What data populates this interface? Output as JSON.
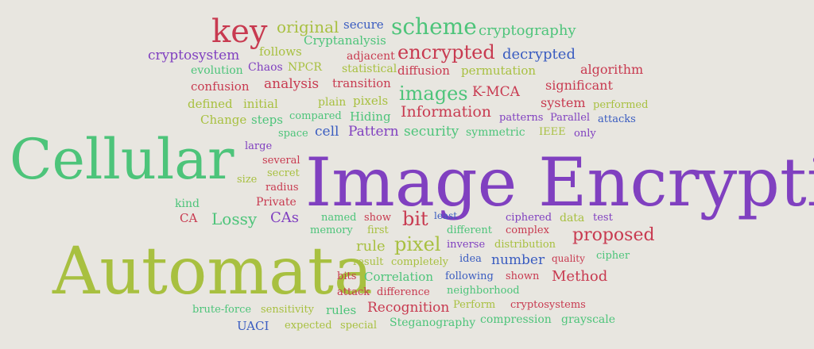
{
  "palette": {
    "background": "#e8e6e0",
    "green": "#4dc47a",
    "olive": "#a8c040",
    "purple": "#8040c0",
    "red": "#c83a50",
    "blue": "#3a5cc0"
  },
  "words": [
    {
      "text": "Image Encryption",
      "color": "purple"
    },
    {
      "text": "Cellular",
      "color": "green"
    },
    {
      "text": "Automata",
      "color": "olive"
    },
    {
      "text": "key",
      "color": "red"
    },
    {
      "text": "scheme",
      "color": "green"
    },
    {
      "text": "encrypted",
      "color": "red"
    },
    {
      "text": "images",
      "color": "green"
    },
    {
      "text": "pixel",
      "color": "olive"
    },
    {
      "text": "Information",
      "color": "red"
    },
    {
      "text": "proposed",
      "color": "red"
    },
    {
      "text": "bit",
      "color": "red"
    },
    {
      "text": "original",
      "color": "olive"
    },
    {
      "text": "cryptography",
      "color": "green"
    },
    {
      "text": "decrypted",
      "color": "blue"
    },
    {
      "text": "cryptosystem",
      "color": "purple"
    },
    {
      "text": "analysis",
      "color": "red"
    },
    {
      "text": "K-MCA",
      "color": "red"
    },
    {
      "text": "Method",
      "color": "red"
    },
    {
      "text": "Lossy",
      "color": "green"
    },
    {
      "text": "CAs",
      "color": "purple"
    },
    {
      "text": "rule",
      "color": "olive"
    },
    {
      "text": "number",
      "color": "blue"
    },
    {
      "text": "Recognition",
      "color": "red"
    },
    {
      "text": "security",
      "color": "green"
    },
    {
      "text": "system",
      "color": "red"
    },
    {
      "text": "cell",
      "color": "blue"
    },
    {
      "text": "Pattern",
      "color": "purple"
    },
    {
      "text": "algorithm",
      "color": "red"
    },
    {
      "text": "significant",
      "color": "red"
    },
    {
      "text": "confusion",
      "color": "red"
    },
    {
      "text": "diffusion",
      "color": "red"
    },
    {
      "text": "permutation",
      "color": "olive"
    },
    {
      "text": "transition",
      "color": "red"
    },
    {
      "text": "secure",
      "color": "blue"
    },
    {
      "text": "Cryptanalysis",
      "color": "green"
    },
    {
      "text": "follows",
      "color": "olive"
    },
    {
      "text": "adjacent",
      "color": "red"
    },
    {
      "text": "Chaos",
      "color": "purple"
    },
    {
      "text": "NPCR",
      "color": "olive"
    },
    {
      "text": "statistical",
      "color": "olive"
    },
    {
      "text": "evolution",
      "color": "green"
    },
    {
      "text": "defined",
      "color": "olive"
    },
    {
      "text": "initial",
      "color": "olive"
    },
    {
      "text": "plain",
      "color": "olive"
    },
    {
      "text": "pixels",
      "color": "olive"
    },
    {
      "text": "performed",
      "color": "olive"
    },
    {
      "text": "Change",
      "color": "olive"
    },
    {
      "text": "steps",
      "color": "green"
    },
    {
      "text": "compared",
      "color": "green"
    },
    {
      "text": "Hiding",
      "color": "green"
    },
    {
      "text": "patterns",
      "color": "purple"
    },
    {
      "text": "Parallel",
      "color": "purple"
    },
    {
      "text": "attacks",
      "color": "blue"
    },
    {
      "text": "space",
      "color": "green"
    },
    {
      "text": "symmetric",
      "color": "green"
    },
    {
      "text": "IEEE",
      "color": "olive"
    },
    {
      "text": "only",
      "color": "purple"
    },
    {
      "text": "large",
      "color": "purple"
    },
    {
      "text": "several",
      "color": "red"
    },
    {
      "text": "secret",
      "color": "olive"
    },
    {
      "text": "size",
      "color": "olive"
    },
    {
      "text": "radius",
      "color": "red"
    },
    {
      "text": "Private",
      "color": "red"
    },
    {
      "text": "kind",
      "color": "green"
    },
    {
      "text": "CA",
      "color": "red"
    },
    {
      "text": "named",
      "color": "green"
    },
    {
      "text": "show",
      "color": "red"
    },
    {
      "text": "least",
      "color": "blue"
    },
    {
      "text": "ciphered",
      "color": "purple"
    },
    {
      "text": "data",
      "color": "olive"
    },
    {
      "text": "test",
      "color": "purple"
    },
    {
      "text": "memory",
      "color": "green"
    },
    {
      "text": "first",
      "color": "olive"
    },
    {
      "text": "different",
      "color": "green"
    },
    {
      "text": "complex",
      "color": "red"
    },
    {
      "text": "inverse",
      "color": "purple"
    },
    {
      "text": "distribution",
      "color": "olive"
    },
    {
      "text": "cipher",
      "color": "green"
    },
    {
      "text": "result",
      "color": "olive"
    },
    {
      "text": "completely",
      "color": "olive"
    },
    {
      "text": "idea",
      "color": "blue"
    },
    {
      "text": "quality",
      "color": "red"
    },
    {
      "text": "bits",
      "color": "red"
    },
    {
      "text": "Correlation",
      "color": "green"
    },
    {
      "text": "following",
      "color": "blue"
    },
    {
      "text": "shown",
      "color": "red"
    },
    {
      "text": "attack",
      "color": "red"
    },
    {
      "text": "difference",
      "color": "red"
    },
    {
      "text": "neighborhood",
      "color": "green"
    },
    {
      "text": "brute-force",
      "color": "green"
    },
    {
      "text": "sensitivity",
      "color": "olive"
    },
    {
      "text": "rules",
      "color": "green"
    },
    {
      "text": "Perform",
      "color": "olive"
    },
    {
      "text": "cryptosystems",
      "color": "red"
    },
    {
      "text": "UACI",
      "color": "blue"
    },
    {
      "text": "expected",
      "color": "olive"
    },
    {
      "text": "special",
      "color": "olive"
    },
    {
      "text": "Steganography",
      "color": "green"
    },
    {
      "text": "compression",
      "color": "green"
    },
    {
      "text": "grayscale",
      "color": "green"
    }
  ]
}
